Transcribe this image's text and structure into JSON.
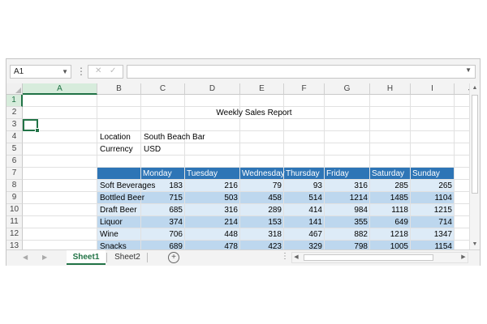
{
  "formula_bar": {
    "name_box": "A1",
    "cancel_icon": "✕",
    "enter_icon": "✓",
    "formula": ""
  },
  "columns": [
    "A",
    "B",
    "C",
    "D",
    "E",
    "F",
    "G",
    "H",
    "I",
    "J"
  ],
  "rows": [
    "1",
    "2",
    "3",
    "4",
    "5",
    "6",
    "7",
    "8",
    "9",
    "10",
    "11",
    "12",
    "13"
  ],
  "report": {
    "title": "Weekly Sales Report",
    "location_label": "Location",
    "location_value": "South Beach Bar",
    "currency_label": "Currency",
    "currency_value": "USD"
  },
  "table": {
    "headers": [
      "Monday",
      "Tuesday",
      "Wednesday",
      "Thursday",
      "Friday",
      "Saturday",
      "Sunday"
    ],
    "rows": [
      {
        "label": "Soft Beverages",
        "values": [
          "183",
          "216",
          "79",
          "93",
          "316",
          "285",
          "265"
        ]
      },
      {
        "label": "Bottled Beer",
        "values": [
          "715",
          "503",
          "458",
          "514",
          "1214",
          "1485",
          "1104"
        ]
      },
      {
        "label": "Draft Beer",
        "values": [
          "685",
          "316",
          "289",
          "414",
          "984",
          "1118",
          "1215"
        ]
      },
      {
        "label": "Liquor",
        "values": [
          "374",
          "214",
          "153",
          "141",
          "355",
          "649",
          "714"
        ]
      },
      {
        "label": "Wine",
        "values": [
          "706",
          "448",
          "318",
          "467",
          "882",
          "1218",
          "1347"
        ]
      },
      {
        "label": "Snacks",
        "values": [
          "689",
          "478",
          "423",
          "329",
          "798",
          "1005",
          "1154"
        ]
      }
    ]
  },
  "sheets": {
    "tabs": [
      "Sheet1",
      "Sheet2"
    ],
    "active": "Sheet1"
  },
  "colors": {
    "header_blue": "#2e75b6",
    "band_light": "#ddebf7",
    "band_dark": "#bdd7ee",
    "accent_green": "#217346"
  },
  "icons": {
    "name_box_dropdown": "chevron-down-icon",
    "more": "vertical-ellipsis-icon",
    "add_sheet": "plus-circle-icon",
    "scroll_up": "triangle-up-icon",
    "scroll_down": "triangle-down-icon",
    "scroll_left": "triangle-left-icon",
    "scroll_right": "triangle-right-icon"
  }
}
